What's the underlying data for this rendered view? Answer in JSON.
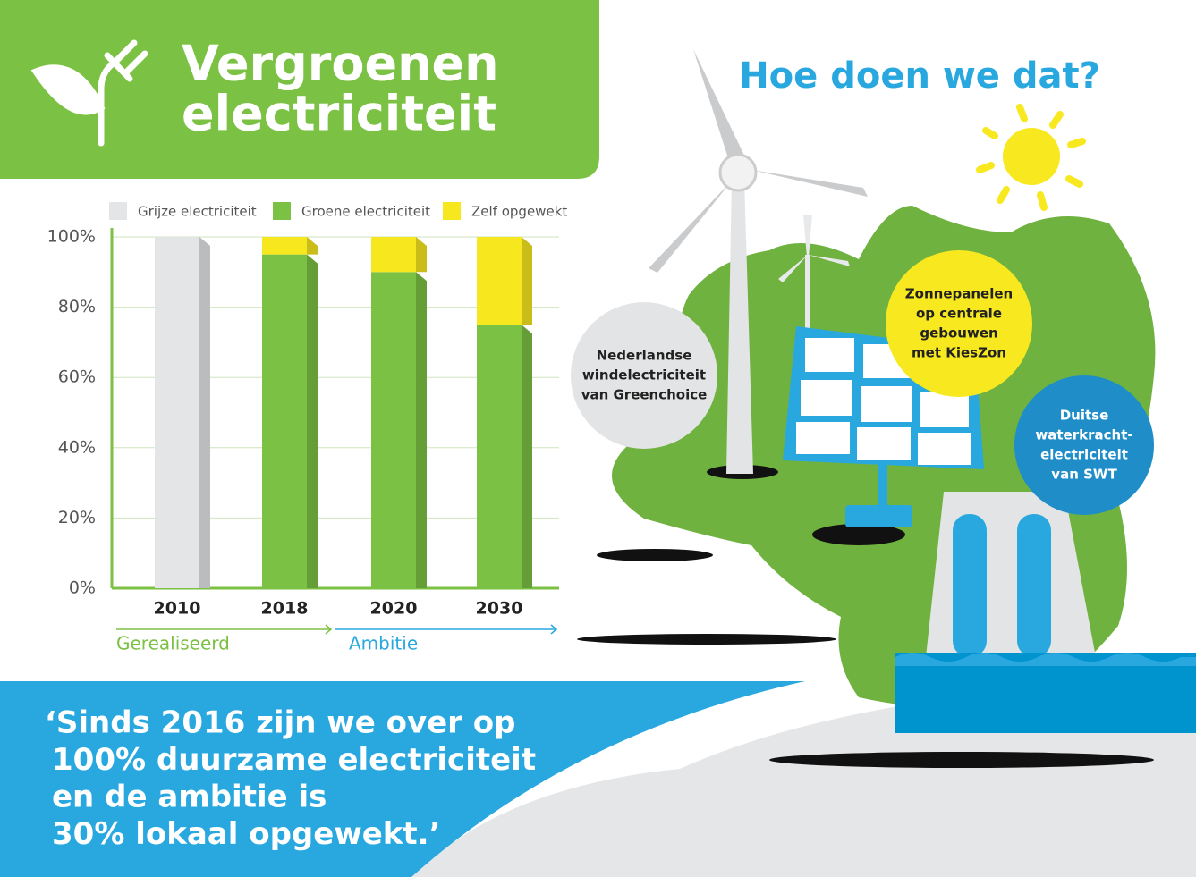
{
  "title_lines": [
    "Vergroenen",
    "electriciteit"
  ],
  "chart_data": {
    "type": "stacked-bar",
    "categories": [
      "2010",
      "2018",
      "2020",
      "2030"
    ],
    "series": [
      {
        "name": "Grijze electriciteit",
        "color": "#e3e5e7",
        "values": [
          100,
          0,
          0,
          0
        ]
      },
      {
        "name": "Groene electriciteit",
        "color": "#7bc143",
        "values": [
          0,
          95,
          90,
          75
        ]
      },
      {
        "name": "Zelf opgewekt",
        "color": "#f6e71f",
        "values": [
          0,
          5,
          10,
          25
        ]
      }
    ],
    "ylim": [
      0,
      100
    ],
    "yticks": [
      {
        "value": 0,
        "label": "0%"
      },
      {
        "value": 20,
        "label": "20%"
      },
      {
        "value": 40,
        "label": "40%"
      },
      {
        "value": 60,
        "label": "60%"
      },
      {
        "value": 80,
        "label": "80%"
      },
      {
        "value": 100,
        "label": "100%"
      }
    ],
    "grid": true,
    "phases": [
      "Gerealiseerd",
      "Ambitie"
    ]
  },
  "heading": "Hoe doen we dat?",
  "bubbles": [
    {
      "lines": [
        "Nederlandse",
        "windelectriciteit",
        "van Greenchoice"
      ]
    },
    {
      "lines": [
        "Zonnepanelen",
        "op centrale",
        "gebouwen",
        "met KiesZon"
      ]
    },
    {
      "lines": [
        "Duitse",
        "waterkracht-",
        "electriciteit",
        "van SWT"
      ]
    }
  ],
  "quote_lines": [
    "‘Sinds 2016 zijn we over op",
    "100% duurzame  electriciteit",
    "en de ambitie is",
    "30% lokaal opgewekt.’"
  ]
}
